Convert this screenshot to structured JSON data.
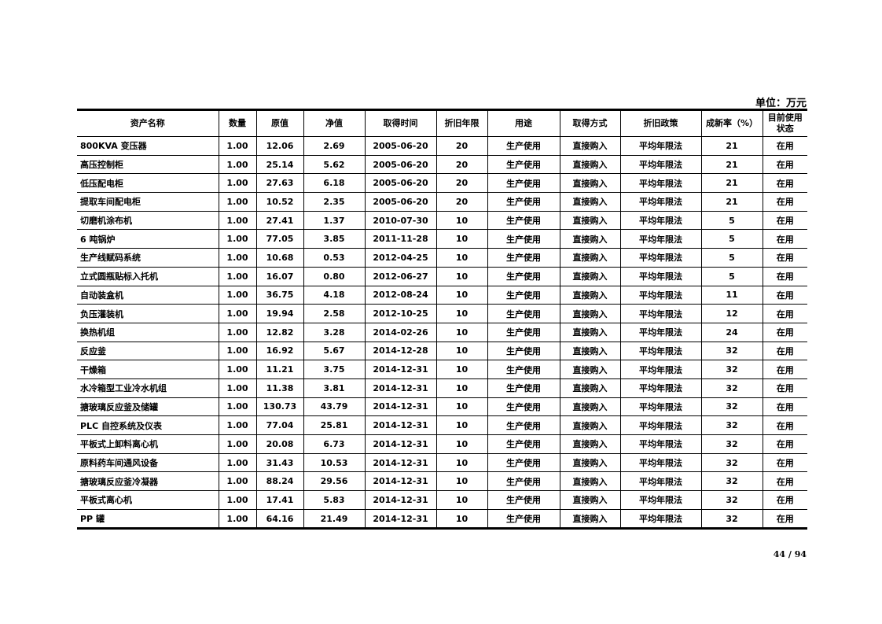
{
  "unit_label": "单位：万元",
  "headers": [
    "资产名称",
    "数量",
    "原值",
    "净值",
    "取得时间",
    "折旧年限",
    "用途",
    "取得方式",
    "折旧政策",
    "成新率（%）",
    "目前使用状态"
  ],
  "rows": [
    [
      "800KVA 变压器",
      "1.00",
      "12.06",
      "2.69",
      "2005-06-20",
      "20",
      "生产使用",
      "直接购入",
      "平均年限法",
      "21",
      "在用"
    ],
    [
      "高压控制柜",
      "1.00",
      "25.14",
      "5.62",
      "2005-06-20",
      "20",
      "生产使用",
      "直接购入",
      "平均年限法",
      "21",
      "在用"
    ],
    [
      "低压配电柜",
      "1.00",
      "27.63",
      "6.18",
      "2005-06-20",
      "20",
      "生产使用",
      "直接购入",
      "平均年限法",
      "21",
      "在用"
    ],
    [
      "提取车间配电柜",
      "1.00",
      "10.52",
      "2.35",
      "2005-06-20",
      "20",
      "生产使用",
      "直接购入",
      "平均年限法",
      "21",
      "在用"
    ],
    [
      "切磨机涂布机",
      "1.00",
      "27.41",
      "1.37",
      "2010-07-30",
      "10",
      "生产使用",
      "直接购入",
      "平均年限法",
      "5",
      "在用"
    ],
    [
      "6 吨锅炉",
      "1.00",
      "77.05",
      "3.85",
      "2011-11-28",
      "10",
      "生产使用",
      "直接购入",
      "平均年限法",
      "5",
      "在用"
    ],
    [
      "生产线赋码系统",
      "1.00",
      "10.68",
      "0.53",
      "2012-04-25",
      "10",
      "生产使用",
      "直接购入",
      "平均年限法",
      "5",
      "在用"
    ],
    [
      "立式圆瓶贴标入托机",
      "1.00",
      "16.07",
      "0.80",
      "2012-06-27",
      "10",
      "生产使用",
      "直接购入",
      "平均年限法",
      "5",
      "在用"
    ],
    [
      "自动装盒机",
      "1.00",
      "36.75",
      "4.18",
      "2012-08-24",
      "10",
      "生产使用",
      "直接购入",
      "平均年限法",
      "11",
      "在用"
    ],
    [
      "负压灌装机",
      "1.00",
      "19.94",
      "2.58",
      "2012-10-25",
      "10",
      "生产使用",
      "直接购入",
      "平均年限法",
      "12",
      "在用"
    ],
    [
      "换热机组",
      "1.00",
      "12.82",
      "3.28",
      "2014-02-26",
      "10",
      "生产使用",
      "直接购入",
      "平均年限法",
      "24",
      "在用"
    ],
    [
      "反应釜",
      "1.00",
      "16.92",
      "5.67",
      "2014-12-28",
      "10",
      "生产使用",
      "直接购入",
      "平均年限法",
      "32",
      "在用"
    ],
    [
      "干燥箱",
      "1.00",
      "11.21",
      "3.75",
      "2014-12-31",
      "10",
      "生产使用",
      "直接购入",
      "平均年限法",
      "32",
      "在用"
    ],
    [
      "水冷箱型工业冷水机组",
      "1.00",
      "11.38",
      "3.81",
      "2014-12-31",
      "10",
      "生产使用",
      "直接购入",
      "平均年限法",
      "32",
      "在用"
    ],
    [
      "搪玻璃反应釜及储罐",
      "1.00",
      "130.73",
      "43.79",
      "2014-12-31",
      "10",
      "生产使用",
      "直接购入",
      "平均年限法",
      "32",
      "在用"
    ],
    [
      "PLC 自控系统及仪表",
      "1.00",
      "77.04",
      "25.81",
      "2014-12-31",
      "10",
      "生产使用",
      "直接购入",
      "平均年限法",
      "32",
      "在用"
    ],
    [
      "平板式上卸料离心机",
      "1.00",
      "20.08",
      "6.73",
      "2014-12-31",
      "10",
      "生产使用",
      "直接购入",
      "平均年限法",
      "32",
      "在用"
    ],
    [
      "原料药车间通风设备",
      "1.00",
      "31.43",
      "10.53",
      "2014-12-31",
      "10",
      "生产使用",
      "直接购入",
      "平均年限法",
      "32",
      "在用"
    ],
    [
      "搪玻璃反应釜冷凝器",
      "1.00",
      "88.24",
      "29.56",
      "2014-12-31",
      "10",
      "生产使用",
      "直接购入",
      "平均年限法",
      "32",
      "在用"
    ],
    [
      "平板式离心机",
      "1.00",
      "17.41",
      "5.83",
      "2014-12-31",
      "10",
      "生产使用",
      "直接购入",
      "平均年限法",
      "32",
      "在用"
    ],
    [
      "PP 罐",
      "1.00",
      "64.16",
      "21.49",
      "2014-12-31",
      "10",
      "生产使用",
      "直接购入",
      "平均年限法",
      "32",
      "在用"
    ]
  ],
  "page_number": "44 / 94"
}
